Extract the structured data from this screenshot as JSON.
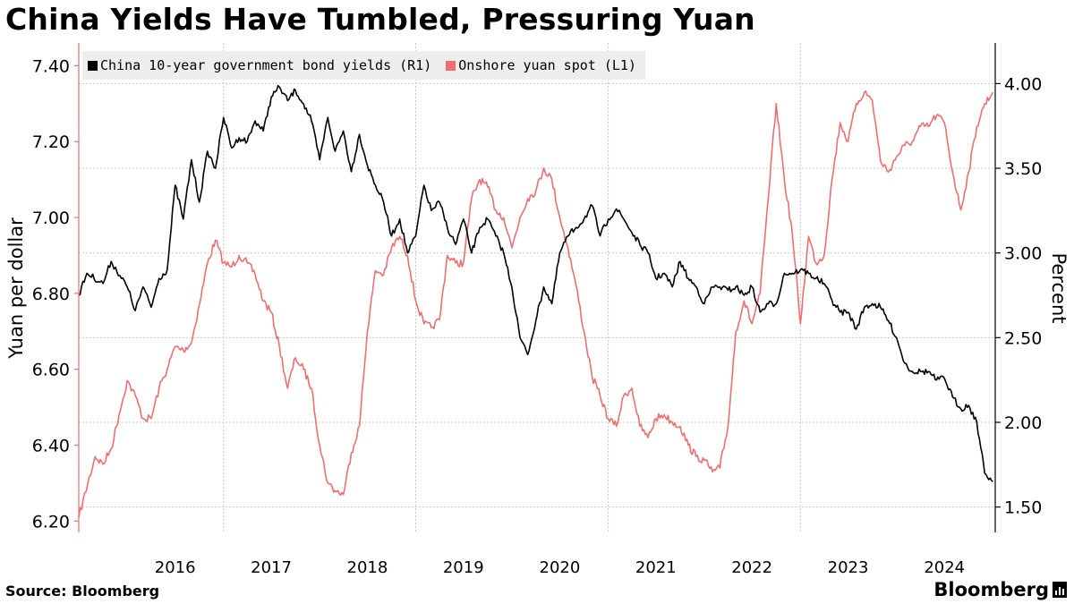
{
  "title": "China Yields Have Tumbled, Pressuring Yuan",
  "source": "Source:  Bloomberg",
  "logo": "Bloomberg",
  "colors": {
    "yield": "#000000",
    "yuan": "#f26d6d",
    "grid": "#c8c8c8"
  },
  "chart_data": {
    "type": "line",
    "title": "China Yields Have Tumbled, Pressuring Yuan",
    "legend_position": "top-left",
    "grid": true,
    "x_tick_labels": [
      "2016",
      "2017",
      "2018",
      "2019",
      "2020",
      "2021",
      "2022",
      "2023",
      "2024"
    ],
    "left_axis": {
      "label": "Yuan per dollar",
      "ticks": [
        "7.40",
        "7.20",
        "7.00",
        "6.80",
        "6.60",
        "6.40",
        "6.20"
      ],
      "range": [
        6.17,
        7.46
      ]
    },
    "right_axis": {
      "label": "Percent",
      "ticks": [
        "4.00",
        "3.50",
        "3.00",
        "2.50",
        "2.00",
        "1.50"
      ],
      "range": [
        1.35,
        4.24
      ]
    },
    "series": [
      {
        "name": "China 10-year government bond yields (R1)",
        "axis": "right",
        "points": [
          [
            "2015-07-01",
            2.75
          ],
          [
            "2015-08-01",
            2.88
          ],
          [
            "2015-10-01",
            2.82
          ],
          [
            "2015-11-01",
            2.95
          ],
          [
            "2016-01-01",
            2.8
          ],
          [
            "2016-02-01",
            2.66
          ],
          [
            "2016-03-01",
            2.8
          ],
          [
            "2016-04-01",
            2.68
          ],
          [
            "2016-05-01",
            2.85
          ],
          [
            "2016-06-01",
            2.9
          ],
          [
            "2016-07-01",
            3.4
          ],
          [
            "2016-08-01",
            3.2
          ],
          [
            "2016-09-01",
            3.55
          ],
          [
            "2016-10-01",
            3.3
          ],
          [
            "2016-11-01",
            3.6
          ],
          [
            "2016-12-01",
            3.5
          ],
          [
            "2017-01-01",
            3.8
          ],
          [
            "2017-02-01",
            3.62
          ],
          [
            "2017-03-01",
            3.68
          ],
          [
            "2017-04-01",
            3.66
          ],
          [
            "2017-05-01",
            3.78
          ],
          [
            "2017-06-01",
            3.72
          ],
          [
            "2017-07-01",
            3.92
          ],
          [
            "2017-08-01",
            3.98
          ],
          [
            "2017-09-01",
            3.9
          ],
          [
            "2017-10-01",
            3.96
          ],
          [
            "2017-11-01",
            3.88
          ],
          [
            "2017-12-01",
            3.78
          ],
          [
            "2018-01-01",
            3.55
          ],
          [
            "2018-02-01",
            3.8
          ],
          [
            "2018-03-01",
            3.6
          ],
          [
            "2018-04-01",
            3.72
          ],
          [
            "2018-05-01",
            3.48
          ],
          [
            "2018-06-01",
            3.7
          ],
          [
            "2018-07-01",
            3.52
          ],
          [
            "2018-08-01",
            3.4
          ],
          [
            "2018-09-01",
            3.3
          ],
          [
            "2018-10-01",
            3.1
          ],
          [
            "2018-11-01",
            3.2
          ],
          [
            "2018-12-01",
            3.0
          ],
          [
            "2019-01-01",
            3.1
          ],
          [
            "2019-02-01",
            3.4
          ],
          [
            "2019-03-01",
            3.25
          ],
          [
            "2019-04-01",
            3.3
          ],
          [
            "2019-05-01",
            3.15
          ],
          [
            "2019-06-01",
            3.05
          ],
          [
            "2019-07-01",
            3.2
          ],
          [
            "2019-08-01",
            3.0
          ],
          [
            "2019-09-01",
            3.15
          ],
          [
            "2019-10-01",
            3.2
          ],
          [
            "2019-11-01",
            3.1
          ],
          [
            "2019-12-01",
            3.0
          ],
          [
            "2020-01-01",
            2.8
          ],
          [
            "2020-02-01",
            2.5
          ],
          [
            "2020-03-01",
            2.4
          ],
          [
            "2020-04-01",
            2.6
          ],
          [
            "2020-05-01",
            2.8
          ],
          [
            "2020-06-01",
            2.7
          ],
          [
            "2020-07-01",
            3.0
          ],
          [
            "2020-08-01",
            3.1
          ],
          [
            "2020-09-01",
            3.15
          ],
          [
            "2020-10-01",
            3.2
          ],
          [
            "2020-11-01",
            3.28
          ],
          [
            "2020-12-01",
            3.1
          ],
          [
            "2021-01-01",
            3.2
          ],
          [
            "2021-02-01",
            3.26
          ],
          [
            "2021-03-01",
            3.2
          ],
          [
            "2021-04-01",
            3.12
          ],
          [
            "2021-05-01",
            3.05
          ],
          [
            "2021-06-01",
            3.0
          ],
          [
            "2021-07-01",
            2.85
          ],
          [
            "2021-08-01",
            2.88
          ],
          [
            "2021-09-01",
            2.8
          ],
          [
            "2021-10-01",
            2.95
          ],
          [
            "2021-11-01",
            2.85
          ],
          [
            "2021-12-01",
            2.8
          ],
          [
            "2022-01-01",
            2.7
          ],
          [
            "2022-02-01",
            2.8
          ],
          [
            "2022-03-01",
            2.8
          ],
          [
            "2022-04-01",
            2.78
          ],
          [
            "2022-05-01",
            2.8
          ],
          [
            "2022-06-01",
            2.75
          ],
          [
            "2022-07-01",
            2.8
          ],
          [
            "2022-08-01",
            2.65
          ],
          [
            "2022-09-01",
            2.7
          ],
          [
            "2022-10-01",
            2.7
          ],
          [
            "2022-11-01",
            2.88
          ],
          [
            "2022-12-01",
            2.88
          ],
          [
            "2023-01-01",
            2.9
          ],
          [
            "2023-02-01",
            2.88
          ],
          [
            "2023-03-01",
            2.85
          ],
          [
            "2023-04-01",
            2.82
          ],
          [
            "2023-05-01",
            2.72
          ],
          [
            "2023-06-01",
            2.65
          ],
          [
            "2023-07-01",
            2.65
          ],
          [
            "2023-08-01",
            2.55
          ],
          [
            "2023-09-01",
            2.68
          ],
          [
            "2023-10-01",
            2.7
          ],
          [
            "2023-11-01",
            2.68
          ],
          [
            "2023-12-01",
            2.6
          ],
          [
            "2024-01-01",
            2.5
          ],
          [
            "2024-02-01",
            2.35
          ],
          [
            "2024-03-01",
            2.3
          ],
          [
            "2024-04-01",
            2.3
          ],
          [
            "2024-05-01",
            2.3
          ],
          [
            "2024-06-01",
            2.25
          ],
          [
            "2024-07-01",
            2.26
          ],
          [
            "2024-08-01",
            2.15
          ],
          [
            "2024-09-01",
            2.08
          ],
          [
            "2024-10-01",
            2.1
          ],
          [
            "2024-11-01",
            2.0
          ],
          [
            "2024-12-01",
            1.7
          ],
          [
            "2025-01-01",
            1.65
          ]
        ]
      },
      {
        "name": "Onshore yuan spot (L1)",
        "axis": "left",
        "points": [
          [
            "2015-07-01",
            6.21
          ],
          [
            "2015-09-01",
            6.37
          ],
          [
            "2015-10-01",
            6.35
          ],
          [
            "2015-11-01",
            6.39
          ],
          [
            "2015-12-01",
            6.48
          ],
          [
            "2016-01-01",
            6.57
          ],
          [
            "2016-02-01",
            6.53
          ],
          [
            "2016-03-01",
            6.47
          ],
          [
            "2016-04-01",
            6.47
          ],
          [
            "2016-05-01",
            6.55
          ],
          [
            "2016-06-01",
            6.6
          ],
          [
            "2016-07-01",
            6.66
          ],
          [
            "2016-08-01",
            6.65
          ],
          [
            "2016-09-01",
            6.67
          ],
          [
            "2016-10-01",
            6.77
          ],
          [
            "2016-11-01",
            6.88
          ],
          [
            "2016-12-01",
            6.94
          ],
          [
            "2017-01-01",
            6.88
          ],
          [
            "2017-02-01",
            6.87
          ],
          [
            "2017-03-01",
            6.9
          ],
          [
            "2017-04-01",
            6.88
          ],
          [
            "2017-05-01",
            6.85
          ],
          [
            "2017-06-01",
            6.78
          ],
          [
            "2017-07-01",
            6.75
          ],
          [
            "2017-08-01",
            6.66
          ],
          [
            "2017-09-01",
            6.55
          ],
          [
            "2017-10-01",
            6.63
          ],
          [
            "2017-11-01",
            6.6
          ],
          [
            "2017-12-01",
            6.55
          ],
          [
            "2018-01-01",
            6.4
          ],
          [
            "2018-02-01",
            6.3
          ],
          [
            "2018-03-01",
            6.28
          ],
          [
            "2018-04-01",
            6.27
          ],
          [
            "2018-05-01",
            6.38
          ],
          [
            "2018-06-01",
            6.45
          ],
          [
            "2018-07-01",
            6.7
          ],
          [
            "2018-08-01",
            6.86
          ],
          [
            "2018-09-01",
            6.85
          ],
          [
            "2018-10-01",
            6.92
          ],
          [
            "2018-11-01",
            6.95
          ],
          [
            "2018-12-01",
            6.9
          ],
          [
            "2019-01-01",
            6.78
          ],
          [
            "2019-02-01",
            6.72
          ],
          [
            "2019-03-01",
            6.71
          ],
          [
            "2019-04-01",
            6.73
          ],
          [
            "2019-05-01",
            6.9
          ],
          [
            "2019-06-01",
            6.88
          ],
          [
            "2019-07-01",
            6.88
          ],
          [
            "2019-08-01",
            7.05
          ],
          [
            "2019-09-01",
            7.1
          ],
          [
            "2019-10-01",
            7.08
          ],
          [
            "2019-11-01",
            7.02
          ],
          [
            "2019-12-01",
            7.0
          ],
          [
            "2020-01-01",
            6.92
          ],
          [
            "2020-02-01",
            7.0
          ],
          [
            "2020-03-01",
            7.05
          ],
          [
            "2020-04-01",
            7.07
          ],
          [
            "2020-05-01",
            7.13
          ],
          [
            "2020-06-01",
            7.1
          ],
          [
            "2020-07-01",
            7.0
          ],
          [
            "2020-08-01",
            6.92
          ],
          [
            "2020-09-01",
            6.82
          ],
          [
            "2020-10-01",
            6.7
          ],
          [
            "2020-11-01",
            6.58
          ],
          [
            "2020-12-01",
            6.53
          ],
          [
            "2021-01-01",
            6.47
          ],
          [
            "2021-02-01",
            6.45
          ],
          [
            "2021-03-01",
            6.53
          ],
          [
            "2021-04-01",
            6.55
          ],
          [
            "2021-05-01",
            6.45
          ],
          [
            "2021-06-01",
            6.42
          ],
          [
            "2021-07-01",
            6.47
          ],
          [
            "2021-08-01",
            6.48
          ],
          [
            "2021-09-01",
            6.46
          ],
          [
            "2021-10-01",
            6.45
          ],
          [
            "2021-11-01",
            6.4
          ],
          [
            "2021-12-01",
            6.37
          ],
          [
            "2022-01-01",
            6.36
          ],
          [
            "2022-02-01",
            6.33
          ],
          [
            "2022-03-01",
            6.34
          ],
          [
            "2022-04-01",
            6.45
          ],
          [
            "2022-05-01",
            6.7
          ],
          [
            "2022-06-01",
            6.78
          ],
          [
            "2022-07-01",
            6.72
          ],
          [
            "2022-08-01",
            6.8
          ],
          [
            "2022-09-01",
            7.05
          ],
          [
            "2022-10-01",
            7.3
          ],
          [
            "2022-11-01",
            7.1
          ],
          [
            "2022-12-01",
            6.96
          ],
          [
            "2023-01-01",
            6.72
          ],
          [
            "2023-02-01",
            6.95
          ],
          [
            "2023-03-01",
            6.88
          ],
          [
            "2023-04-01",
            6.9
          ],
          [
            "2023-05-01",
            7.1
          ],
          [
            "2023-06-01",
            7.25
          ],
          [
            "2023-07-01",
            7.2
          ],
          [
            "2023-08-01",
            7.3
          ],
          [
            "2023-09-01",
            7.33
          ],
          [
            "2023-10-01",
            7.31
          ],
          [
            "2023-11-01",
            7.15
          ],
          [
            "2023-12-01",
            7.12
          ],
          [
            "2024-01-01",
            7.16
          ],
          [
            "2024-02-01",
            7.19
          ],
          [
            "2024-03-01",
            7.2
          ],
          [
            "2024-04-01",
            7.24
          ],
          [
            "2024-05-01",
            7.24
          ],
          [
            "2024-06-01",
            7.27
          ],
          [
            "2024-07-01",
            7.25
          ],
          [
            "2024-08-01",
            7.12
          ],
          [
            "2024-09-01",
            7.02
          ],
          [
            "2024-10-01",
            7.12
          ],
          [
            "2024-11-01",
            7.24
          ],
          [
            "2024-12-01",
            7.3
          ],
          [
            "2025-01-01",
            7.33
          ]
        ]
      }
    ]
  }
}
